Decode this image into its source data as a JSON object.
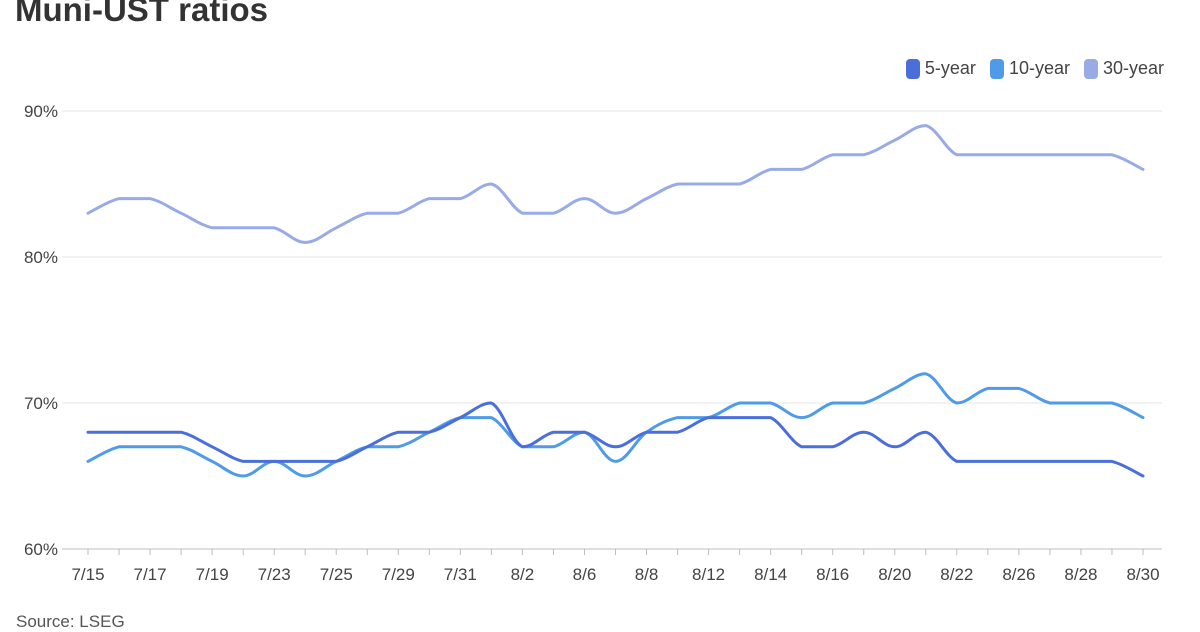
{
  "chart_data": {
    "type": "line",
    "title": "Muni-UST ratios",
    "source": "Source: LSEG",
    "xlabel": "",
    "ylabel": "",
    "ylim": [
      60,
      90
    ],
    "yticks": [
      60,
      70,
      80,
      90
    ],
    "ytick_labels": [
      "60%",
      "70%",
      "80%",
      "90%"
    ],
    "grid": true,
    "legend_position": "top-right",
    "x": [
      "7/15",
      "7/16",
      "7/17",
      "7/18",
      "7/19",
      "7/22",
      "7/23",
      "7/24",
      "7/25",
      "7/26",
      "7/29",
      "7/30",
      "7/31",
      "8/1",
      "8/2",
      "8/5",
      "8/6",
      "8/7",
      "8/8",
      "8/9",
      "8/12",
      "8/13",
      "8/14",
      "8/15",
      "8/16",
      "8/19",
      "8/20",
      "8/21",
      "8/22",
      "8/23",
      "8/26",
      "8/27",
      "8/28",
      "8/29",
      "8/30"
    ],
    "xtick_labels": [
      "7/15",
      "7/17",
      "7/19",
      "7/23",
      "7/25",
      "7/29",
      "7/31",
      "8/2",
      "8/6",
      "8/8",
      "8/12",
      "8/14",
      "8/16",
      "8/20",
      "8/22",
      "8/26",
      "8/28",
      "8/30"
    ],
    "series": [
      {
        "name": "5-year",
        "color": "#4a6fdc",
        "values": [
          68,
          68,
          68,
          68,
          67,
          66,
          66,
          66,
          66,
          67,
          68,
          68,
          69,
          70,
          67,
          68,
          68,
          67,
          68,
          68,
          69,
          69,
          69,
          67,
          67,
          68,
          67,
          68,
          66,
          66,
          66,
          66,
          66,
          66,
          65
        ]
      },
      {
        "name": "10-year",
        "color": "#4f9be8",
        "values": [
          66,
          67,
          67,
          67,
          66,
          65,
          66,
          65,
          66,
          67,
          67,
          68,
          69,
          69,
          67,
          67,
          68,
          66,
          68,
          69,
          69,
          70,
          70,
          69,
          70,
          70,
          71,
          72,
          70,
          71,
          71,
          70,
          70,
          70,
          69
        ]
      },
      {
        "name": "30-year",
        "color": "#98abe6",
        "values": [
          83,
          84,
          84,
          83,
          82,
          82,
          82,
          81,
          82,
          83,
          83,
          84,
          84,
          85,
          83,
          83,
          84,
          83,
          84,
          85,
          85,
          85,
          86,
          86,
          87,
          87,
          88,
          89,
          87,
          87,
          87,
          87,
          87,
          87,
          86
        ]
      }
    ]
  }
}
